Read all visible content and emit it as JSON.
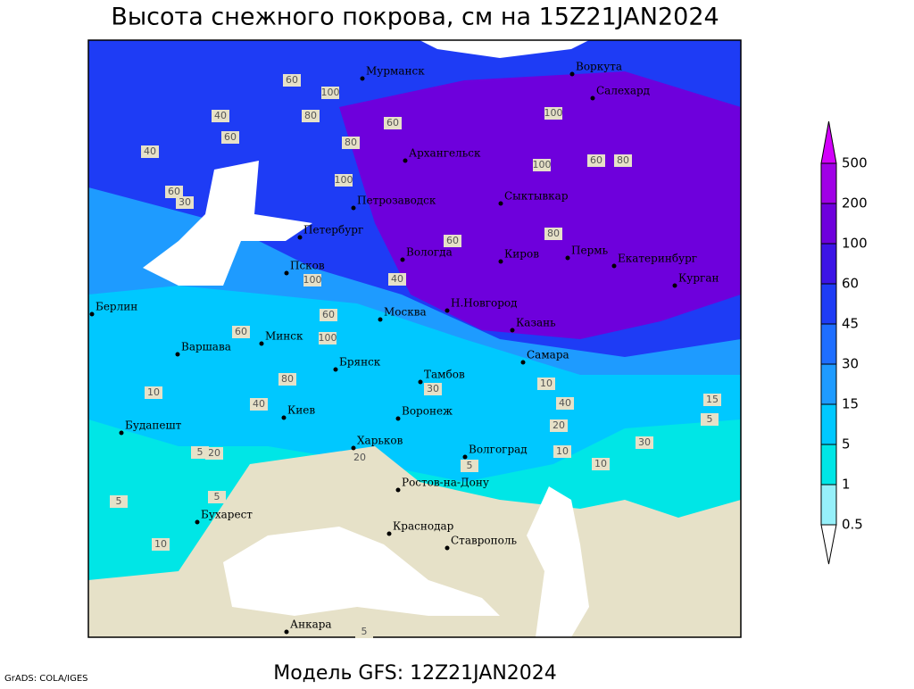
{
  "title": "Высота снежного покрова, см на 15Z21JAN2024",
  "footer": "Модель GFS: 12Z21JAN2024",
  "credit": "GrADS: COLA/IGES",
  "legend": {
    "levels": [
      0.5,
      1,
      5,
      15,
      30,
      45,
      60,
      100,
      200,
      500
    ],
    "colors": [
      "#ffffff",
      "#96f0fa",
      "#00e6e6",
      "#00c8ff",
      "#1e9bff",
      "#1e6eff",
      "#1e3cf5",
      "#3c14e6",
      "#6e00dc",
      "#a000e6",
      "#d200fa"
    ]
  },
  "cities": [
    "Мурманск",
    "Воркута",
    "Салехард",
    "Архангельск",
    "Сыктывкар",
    "Петрозаводск",
    "Петербург",
    "Вологда",
    "Киров",
    "Пермь",
    "Екатеринбург",
    "Курган",
    "Псков",
    "Н.Новгород",
    "Москва",
    "Казань",
    "Берлин",
    "Минск",
    "Варшава",
    "Брянск",
    "Тамбов",
    "Самара",
    "Киев",
    "Воронеж",
    "Будапешт",
    "Харьков",
    "Волгоград",
    "Ростов-на-Дону",
    "Бухарест",
    "Краснодар",
    "Ставрополь",
    "Анкара"
  ],
  "contour_labels": [
    60,
    100,
    80,
    40,
    60,
    40,
    60,
    30,
    80,
    60,
    100,
    100,
    80,
    60,
    100,
    60,
    80,
    40,
    60,
    100,
    100,
    80,
    60,
    40,
    30,
    40,
    15,
    10,
    5,
    20,
    30,
    20,
    10,
    20,
    10,
    5,
    5,
    10,
    5,
    5,
    10,
    5
  ]
}
